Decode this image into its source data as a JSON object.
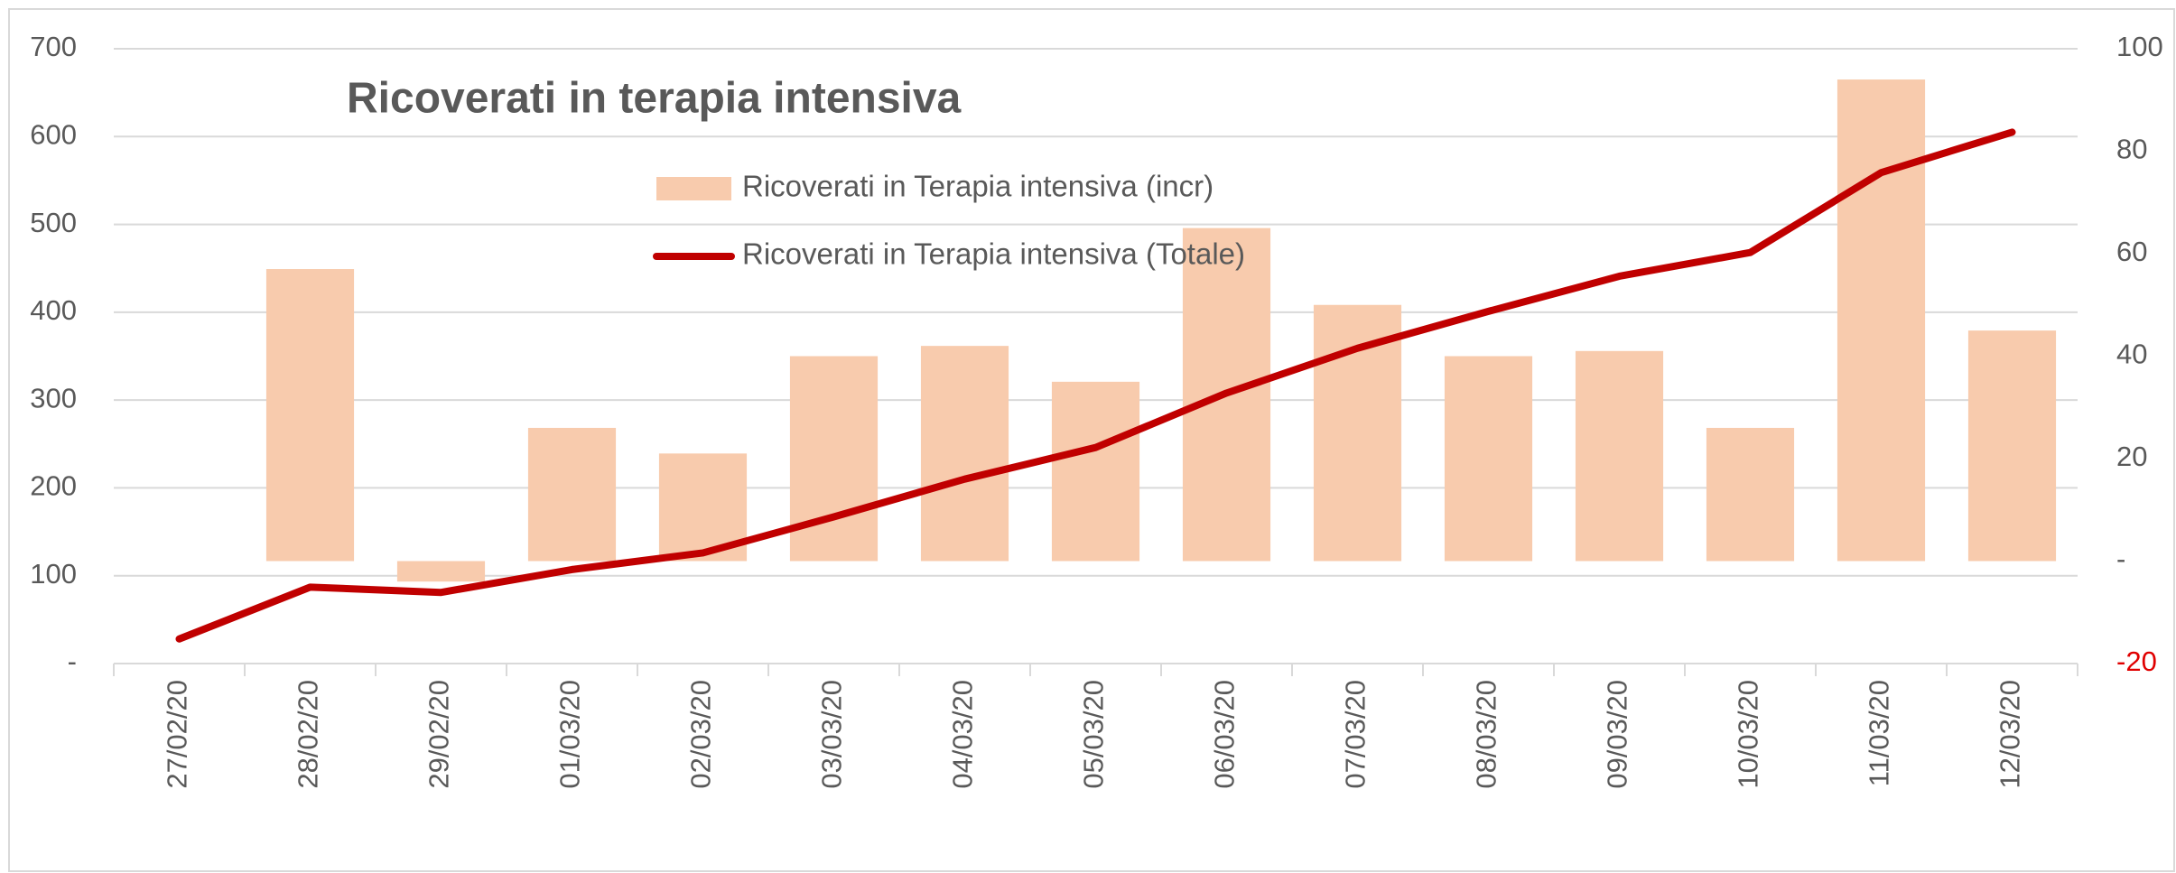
{
  "chart_data": {
    "type": "bar-line",
    "title": "Ricoverati in terapia intensiva",
    "categories": [
      "27/02/20",
      "28/02/20",
      "29/02/20",
      "01/03/20",
      "02/03/20",
      "03/03/20",
      "04/03/20",
      "05/03/20",
      "06/03/20",
      "07/03/20",
      "08/03/20",
      "09/03/20",
      "10/03/20",
      "11/03/20",
      "12/03/20"
    ],
    "series": [
      {
        "name": "Ricoverati in Terapia intensiva (incr)",
        "type": "bar",
        "axis": "y2",
        "color": "#f8cbad",
        "values": [
          null,
          57,
          -4,
          26,
          21,
          40,
          42,
          35,
          65,
          50,
          40,
          41,
          26,
          94,
          45
        ]
      },
      {
        "name": "Ricoverati in Terapia intensiva (Totale)",
        "type": "line",
        "axis": "y",
        "color": "#c00000",
        "values": [
          28,
          87,
          81,
          107,
          126,
          167,
          210,
          246,
          308,
          359,
          401,
          441,
          468,
          559,
          605
        ]
      }
    ],
    "ylim": [
      0,
      700
    ],
    "yticks": [
      {
        "value": 0,
        "label": "-"
      },
      100,
      200,
      300,
      400,
      500,
      600,
      700
    ],
    "y2lim": [
      -20,
      100
    ],
    "y2ticks": [
      -20,
      {
        "value": 0,
        "label": "-"
      },
      20,
      40,
      60,
      80,
      100
    ],
    "negative_tick_color": "#e00000",
    "grid": true
  }
}
